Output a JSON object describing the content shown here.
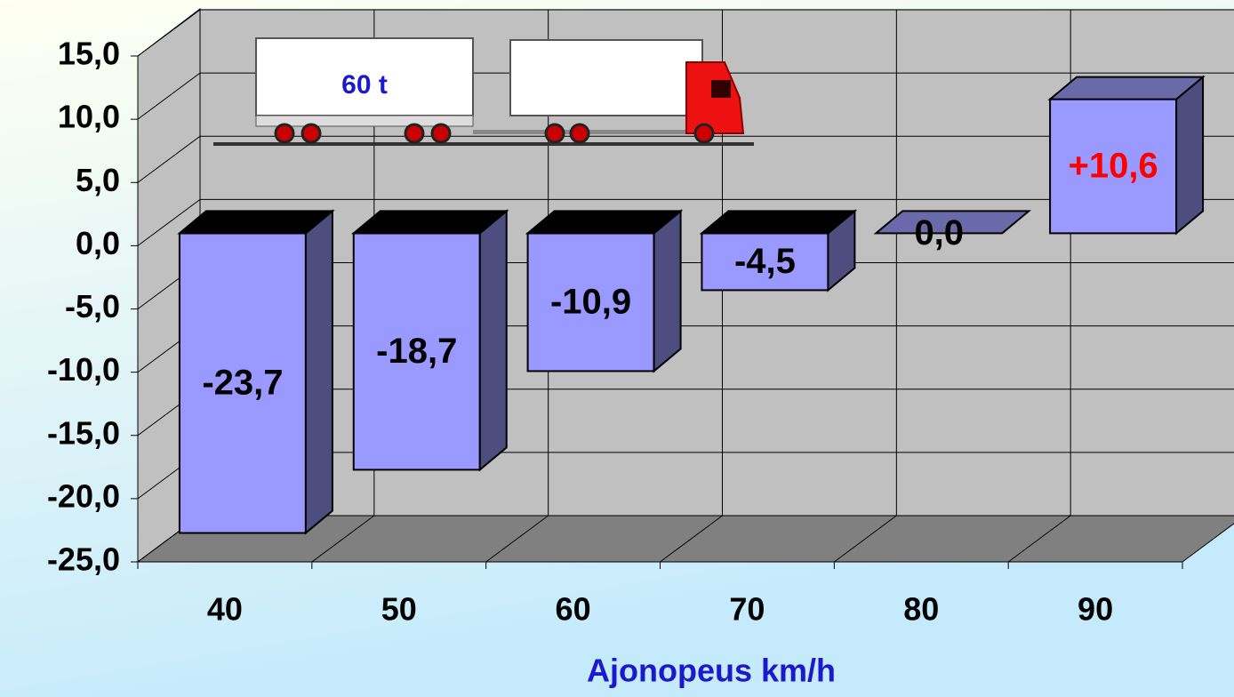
{
  "chart_data": {
    "type": "bar3d",
    "x_label": "Ajonopeus km/h",
    "annotation": "60 t",
    "categories": [
      "40",
      "50",
      "60",
      "70",
      "80",
      "90"
    ],
    "values": [
      -23.7,
      -18.7,
      -10.9,
      -4.5,
      0.0,
      10.6
    ],
    "value_labels": [
      "-23,7",
      "-18,7",
      "-10,9",
      "-4,5",
      "0,0",
      "+10,6"
    ],
    "value_label_colors": [
      "#000000",
      "#000000",
      "#000000",
      "#000000",
      "#000000",
      "#ff0000"
    ],
    "color": "#9999ff",
    "ylim": [
      -25,
      15
    ],
    "yticks": [
      {
        "value": -25,
        "label": "-25,0"
      },
      {
        "value": -20,
        "label": "-20,0"
      },
      {
        "value": -15,
        "label": "-15,0"
      },
      {
        "value": -10,
        "label": "-10,0"
      },
      {
        "value": -5,
        "label": "-5,0"
      },
      {
        "value": 0,
        "label": "0,0"
      },
      {
        "value": 5,
        "label": "5,0"
      },
      {
        "value": 10,
        "label": "10,0"
      },
      {
        "value": 15,
        "label": "15,0"
      }
    ],
    "grid": true
  }
}
